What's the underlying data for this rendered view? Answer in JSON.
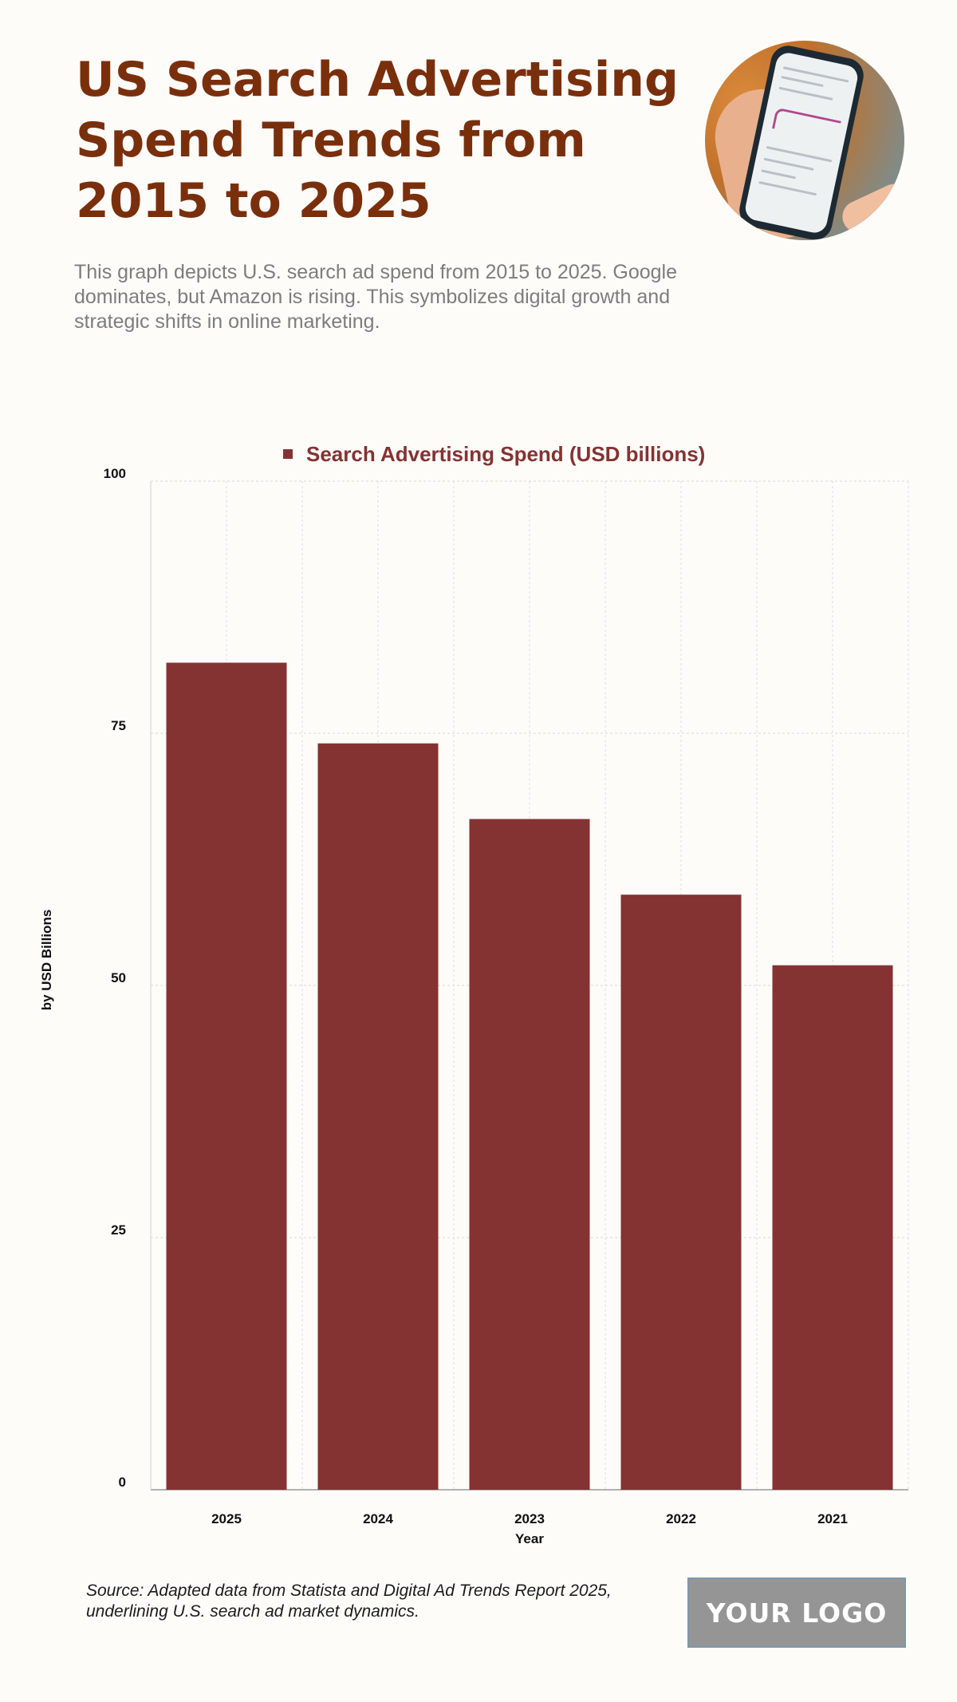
{
  "header": {
    "title": "US Search Advertising Spend Trends from 2015 to 2025",
    "subtitle": "This graph depicts U.S. search ad spend from 2015 to 2025. Google dominates, but Amazon is rising. This symbolizes digital growth and strategic shifts in online marketing."
  },
  "hero_image": {
    "icon": "phone-in-hand-icon"
  },
  "footer": {
    "source": "Source: Adapted data from Statista and Digital Ad Trends Report 2025, underlining U.S. search ad market dynamics.",
    "logo_text": "YOUR LOGO"
  },
  "colors": {
    "title": "#7a2f0c",
    "bar": "#843232",
    "legend_text": "#843232",
    "background": "#fdfcf9"
  },
  "chart_data": {
    "type": "bar",
    "legend": "Search Advertising Spend (USD billions)",
    "legend_position": "top-center",
    "xlabel": "Year",
    "ylabel": "by USD Billions",
    "categories": [
      "2025",
      "2024",
      "2023",
      "2022",
      "2021"
    ],
    "series": [
      {
        "name": "Search Advertising Spend (USD billions)",
        "values": [
          82,
          74,
          66.5,
          59,
          52
        ]
      }
    ],
    "ylim": [
      0,
      100
    ],
    "yticks": [
      0,
      25,
      50,
      75,
      100
    ],
    "grid": true
  }
}
